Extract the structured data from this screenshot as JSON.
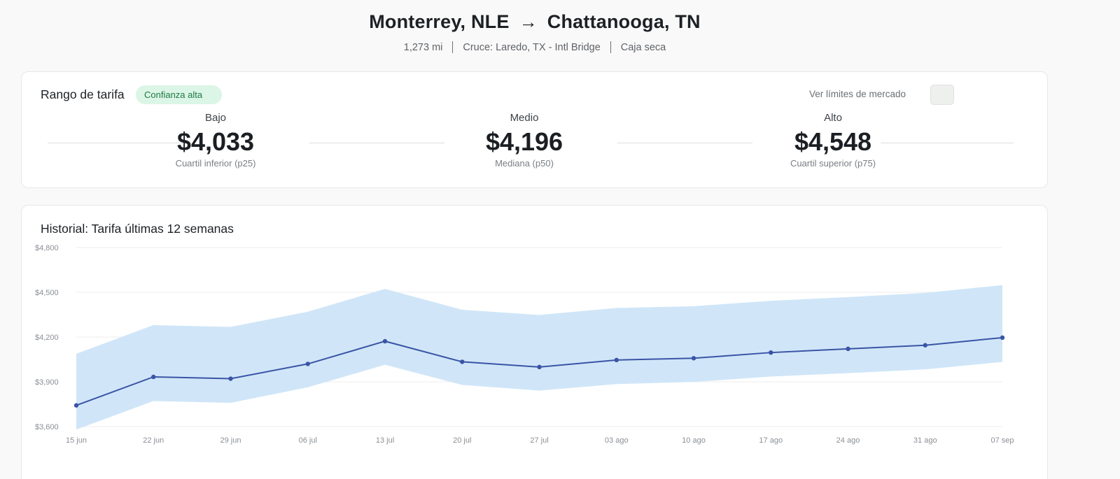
{
  "header": {
    "origin": "Monterrey, NLE",
    "arrow": "→",
    "destination": "Chattanooga, TN",
    "distance": "1,273 mi",
    "crossing": "Cruce: Laredo, TX - Intl Bridge",
    "equipment": "Caja seca"
  },
  "range": {
    "title": "Rango de tarifa",
    "confidence": "Confianza alta",
    "toggle_label": "Ver límites de mercado",
    "toggle_on": false,
    "low": {
      "label": "Bajo",
      "value": "$4,033",
      "sub": "Cuartil inferior (p25)"
    },
    "mid": {
      "label": "Medio",
      "value": "$4,196",
      "sub": "Mediana (p50)"
    },
    "high": {
      "label": "Alto",
      "value": "$4,548",
      "sub": "Cuartil superior (p75)"
    }
  },
  "history": {
    "title": "Historial: Tarifa últimas 12 semanas"
  },
  "chart_data": {
    "type": "line",
    "x": [
      "15 jun",
      "22 jun",
      "29 jun",
      "06 jul",
      "13 jul",
      "20 jul",
      "27 jul",
      "03 ago",
      "10 ago",
      "17 ago",
      "24 ago",
      "31 ago",
      "07 sep"
    ],
    "series": [
      {
        "role": "median",
        "values": [
          3742,
          3933,
          3921,
          4020,
          4172,
          4034,
          3999,
          4046,
          4058,
          4096,
          4121,
          4145,
          4196
        ]
      },
      {
        "role": "band-low",
        "values": [
          3580,
          3771,
          3759,
          3863,
          4014,
          3879,
          3841,
          3885,
          3899,
          3935,
          3958,
          3983,
          4033
        ]
      },
      {
        "role": "band-high",
        "values": [
          4088,
          4280,
          4268,
          4370,
          4523,
          4383,
          4348,
          4395,
          4407,
          4443,
          4468,
          4496,
          4548
        ]
      }
    ],
    "yticks": [
      "$3,600",
      "$3,900",
      "$4,200",
      "$4,500",
      "$4,800"
    ],
    "ylim": [
      3600,
      4800
    ],
    "grid": true,
    "colors": {
      "line": "#3a54a6",
      "band": "#d0e6f8",
      "grid": "#eceef0"
    }
  }
}
